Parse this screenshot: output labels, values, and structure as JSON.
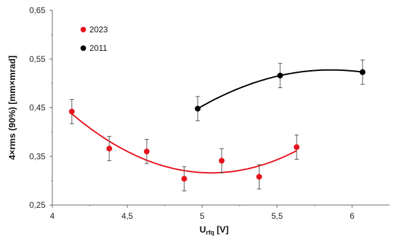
{
  "chart_data": {
    "type": "scatter",
    "xlabel_main": "U",
    "xlabel_sub": "rfq",
    "xlabel_unit": " [V]",
    "ylabel": "4×rms (90%) [mm×mrad]",
    "xlim": [
      4,
      6.25
    ],
    "ylim": [
      0.25,
      0.65
    ],
    "x_ticks": [
      "4",
      "4,5",
      "5",
      "5,5",
      "6"
    ],
    "x_tick_values": [
      4,
      4.5,
      5,
      5.5,
      6
    ],
    "y_ticks": [
      "0,25",
      "0,35",
      "0,45",
      "0,55",
      "0,65"
    ],
    "y_tick_values": [
      0.25,
      0.35,
      0.45,
      0.55,
      0.65
    ],
    "grid": false,
    "legend": "top-left",
    "series": [
      {
        "name": "2023",
        "color": "#e8141e",
        "x": [
          4.13,
          4.38,
          4.63,
          4.88,
          5.13,
          5.38,
          5.63
        ],
        "y": [
          0.442,
          0.366,
          0.36,
          0.304,
          0.341,
          0.308,
          0.369
        ],
        "error": [
          0.025,
          0.025,
          0.025,
          0.025,
          0.025,
          0.025,
          0.025
        ],
        "fit": "quadratic"
      },
      {
        "name": "2011",
        "color": "#000000",
        "x": [
          4.97,
          5.52,
          6.07
        ],
        "y": [
          0.448,
          0.516,
          0.523
        ],
        "error": [
          0.025,
          0.025,
          0.025
        ],
        "fit": "quadratic"
      }
    ]
  }
}
